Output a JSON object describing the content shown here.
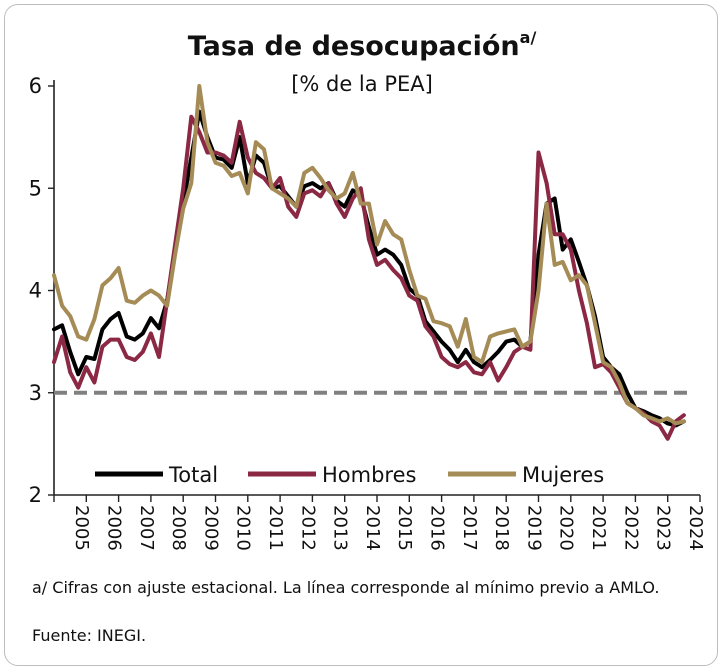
{
  "chart_data": {
    "type": "line",
    "title": "Tasa de desocupación",
    "title_superscript": "a/",
    "subtitle": "[% de la PEA]",
    "xlabel": "",
    "ylabel": "",
    "ylim": [
      2,
      6
    ],
    "xlim": [
      2005,
      2025
    ],
    "yticks": [
      "2",
      "3",
      "4",
      "5",
      "6"
    ],
    "xticks": [
      "2005",
      "2006",
      "2007",
      "2008",
      "2009",
      "2010",
      "2011",
      "2012",
      "2013",
      "2014",
      "2015",
      "2016",
      "2017",
      "2018",
      "2019",
      "2020",
      "2021",
      "2022",
      "2023",
      "2024"
    ],
    "grid": false,
    "legend_position": "bottom-inside",
    "reference_line": {
      "value": 3.0,
      "style": "dashed",
      "color": "#808080"
    },
    "series": [
      {
        "name": "Total",
        "color": "#000000",
        "points": [
          [
            2005.0,
            3.62
          ],
          [
            2005.25,
            3.66
          ],
          [
            2005.5,
            3.4
          ],
          [
            2005.75,
            3.18
          ],
          [
            2006.0,
            3.35
          ],
          [
            2006.25,
            3.33
          ],
          [
            2006.5,
            3.62
          ],
          [
            2006.75,
            3.72
          ],
          [
            2007.0,
            3.78
          ],
          [
            2007.25,
            3.55
          ],
          [
            2007.5,
            3.52
          ],
          [
            2007.75,
            3.58
          ],
          [
            2008.0,
            3.73
          ],
          [
            2008.25,
            3.63
          ],
          [
            2008.5,
            3.9
          ],
          [
            2008.75,
            4.4
          ],
          [
            2009.0,
            4.85
          ],
          [
            2009.25,
            5.3
          ],
          [
            2009.5,
            5.75
          ],
          [
            2009.75,
            5.5
          ],
          [
            2010.0,
            5.3
          ],
          [
            2010.25,
            5.28
          ],
          [
            2010.5,
            5.2
          ],
          [
            2010.75,
            5.5
          ],
          [
            2011.0,
            5.05
          ],
          [
            2011.25,
            5.32
          ],
          [
            2011.5,
            5.25
          ],
          [
            2011.75,
            5.0
          ],
          [
            2012.0,
            5.02
          ],
          [
            2012.25,
            4.92
          ],
          [
            2012.5,
            4.82
          ],
          [
            2012.75,
            5.02
          ],
          [
            2013.0,
            5.05
          ],
          [
            2013.25,
            5.0
          ],
          [
            2013.5,
            5.05
          ],
          [
            2013.75,
            4.88
          ],
          [
            2014.0,
            4.82
          ],
          [
            2014.25,
            4.98
          ],
          [
            2014.5,
            4.92
          ],
          [
            2014.75,
            4.62
          ],
          [
            2015.0,
            4.35
          ],
          [
            2015.25,
            4.4
          ],
          [
            2015.5,
            4.35
          ],
          [
            2015.75,
            4.25
          ],
          [
            2016.0,
            4.02
          ],
          [
            2016.25,
            3.95
          ],
          [
            2016.5,
            3.7
          ],
          [
            2016.75,
            3.6
          ],
          [
            2017.0,
            3.5
          ],
          [
            2017.25,
            3.42
          ],
          [
            2017.5,
            3.3
          ],
          [
            2017.75,
            3.42
          ],
          [
            2018.0,
            3.3
          ],
          [
            2018.25,
            3.25
          ],
          [
            2018.5,
            3.32
          ],
          [
            2018.75,
            3.4
          ],
          [
            2019.0,
            3.5
          ],
          [
            2019.25,
            3.52
          ],
          [
            2019.5,
            3.45
          ],
          [
            2019.75,
            3.5
          ],
          [
            2020.0,
            4.35
          ],
          [
            2020.25,
            4.85
          ],
          [
            2020.5,
            4.9
          ],
          [
            2020.75,
            4.4
          ],
          [
            2021.0,
            4.5
          ],
          [
            2021.25,
            4.28
          ],
          [
            2021.5,
            4.05
          ],
          [
            2021.75,
            3.75
          ],
          [
            2022.0,
            3.35
          ],
          [
            2022.25,
            3.25
          ],
          [
            2022.5,
            3.18
          ],
          [
            2022.75,
            3.0
          ],
          [
            2023.0,
            2.85
          ],
          [
            2023.25,
            2.82
          ],
          [
            2023.5,
            2.78
          ],
          [
            2023.75,
            2.75
          ],
          [
            2024.0,
            2.7
          ],
          [
            2024.25,
            2.68
          ],
          [
            2024.5,
            2.72
          ]
        ]
      },
      {
        "name": "Hombres",
        "color": "#8b2844",
        "points": [
          [
            2005.0,
            3.3
          ],
          [
            2005.25,
            3.55
          ],
          [
            2005.5,
            3.2
          ],
          [
            2005.75,
            3.05
          ],
          [
            2006.0,
            3.25
          ],
          [
            2006.25,
            3.1
          ],
          [
            2006.5,
            3.45
          ],
          [
            2006.75,
            3.52
          ],
          [
            2007.0,
            3.52
          ],
          [
            2007.25,
            3.35
          ],
          [
            2007.5,
            3.32
          ],
          [
            2007.75,
            3.4
          ],
          [
            2008.0,
            3.58
          ],
          [
            2008.25,
            3.35
          ],
          [
            2008.5,
            3.9
          ],
          [
            2008.75,
            4.45
          ],
          [
            2009.0,
            5.0
          ],
          [
            2009.25,
            5.7
          ],
          [
            2009.5,
            5.55
          ],
          [
            2009.75,
            5.35
          ],
          [
            2010.0,
            5.35
          ],
          [
            2010.25,
            5.32
          ],
          [
            2010.5,
            5.25
          ],
          [
            2010.75,
            5.65
          ],
          [
            2011.0,
            5.3
          ],
          [
            2011.25,
            5.15
          ],
          [
            2011.5,
            5.1
          ],
          [
            2011.75,
            5.0
          ],
          [
            2012.0,
            5.1
          ],
          [
            2012.25,
            4.82
          ],
          [
            2012.5,
            4.72
          ],
          [
            2012.75,
            4.95
          ],
          [
            2013.0,
            4.98
          ],
          [
            2013.25,
            4.92
          ],
          [
            2013.5,
            5.05
          ],
          [
            2013.75,
            4.85
          ],
          [
            2014.0,
            4.72
          ],
          [
            2014.25,
            4.9
          ],
          [
            2014.5,
            5.0
          ],
          [
            2014.75,
            4.5
          ],
          [
            2015.0,
            4.25
          ],
          [
            2015.25,
            4.3
          ],
          [
            2015.5,
            4.2
          ],
          [
            2015.75,
            4.12
          ],
          [
            2016.0,
            3.95
          ],
          [
            2016.25,
            3.9
          ],
          [
            2016.5,
            3.65
          ],
          [
            2016.75,
            3.55
          ],
          [
            2017.0,
            3.35
          ],
          [
            2017.25,
            3.28
          ],
          [
            2017.5,
            3.25
          ],
          [
            2017.75,
            3.3
          ],
          [
            2018.0,
            3.2
          ],
          [
            2018.25,
            3.18
          ],
          [
            2018.5,
            3.3
          ],
          [
            2018.75,
            3.12
          ],
          [
            2019.0,
            3.25
          ],
          [
            2019.25,
            3.4
          ],
          [
            2019.5,
            3.45
          ],
          [
            2019.75,
            3.42
          ],
          [
            2020.0,
            5.35
          ],
          [
            2020.25,
            5.05
          ],
          [
            2020.5,
            4.55
          ],
          [
            2020.75,
            4.55
          ],
          [
            2021.0,
            4.4
          ],
          [
            2021.25,
            4.0
          ],
          [
            2021.5,
            3.68
          ],
          [
            2021.75,
            3.25
          ],
          [
            2022.0,
            3.28
          ],
          [
            2022.25,
            3.2
          ],
          [
            2022.5,
            3.05
          ],
          [
            2022.75,
            2.9
          ],
          [
            2023.0,
            2.85
          ],
          [
            2023.25,
            2.8
          ],
          [
            2023.5,
            2.72
          ],
          [
            2023.75,
            2.68
          ],
          [
            2024.0,
            2.55
          ],
          [
            2024.25,
            2.72
          ],
          [
            2024.5,
            2.78
          ]
        ]
      },
      {
        "name": "Mujeres",
        "color": "#a58b55",
        "points": [
          [
            2005.0,
            4.15
          ],
          [
            2005.25,
            3.85
          ],
          [
            2005.5,
            3.75
          ],
          [
            2005.75,
            3.55
          ],
          [
            2006.0,
            3.52
          ],
          [
            2006.25,
            3.72
          ],
          [
            2006.5,
            4.05
          ],
          [
            2006.75,
            4.12
          ],
          [
            2007.0,
            4.22
          ],
          [
            2007.25,
            3.9
          ],
          [
            2007.5,
            3.88
          ],
          [
            2007.75,
            3.95
          ],
          [
            2008.0,
            4.0
          ],
          [
            2008.25,
            3.95
          ],
          [
            2008.5,
            3.85
          ],
          [
            2008.75,
            4.35
          ],
          [
            2009.0,
            4.8
          ],
          [
            2009.25,
            5.05
          ],
          [
            2009.5,
            6.0
          ],
          [
            2009.75,
            5.45
          ],
          [
            2010.0,
            5.25
          ],
          [
            2010.25,
            5.22
          ],
          [
            2010.5,
            5.12
          ],
          [
            2010.75,
            5.15
          ],
          [
            2011.0,
            4.95
          ],
          [
            2011.25,
            5.45
          ],
          [
            2011.5,
            5.38
          ],
          [
            2011.75,
            5.0
          ],
          [
            2012.0,
            4.95
          ],
          [
            2012.25,
            4.9
          ],
          [
            2012.5,
            4.82
          ],
          [
            2012.75,
            5.15
          ],
          [
            2013.0,
            5.2
          ],
          [
            2013.25,
            5.1
          ],
          [
            2013.5,
            4.98
          ],
          [
            2013.75,
            4.9
          ],
          [
            2014.0,
            4.95
          ],
          [
            2014.25,
            5.15
          ],
          [
            2014.5,
            4.85
          ],
          [
            2014.75,
            4.85
          ],
          [
            2015.0,
            4.45
          ],
          [
            2015.25,
            4.68
          ],
          [
            2015.5,
            4.55
          ],
          [
            2015.75,
            4.5
          ],
          [
            2016.0,
            4.2
          ],
          [
            2016.25,
            3.95
          ],
          [
            2016.5,
            3.92
          ],
          [
            2016.75,
            3.7
          ],
          [
            2017.0,
            3.68
          ],
          [
            2017.25,
            3.65
          ],
          [
            2017.5,
            3.45
          ],
          [
            2017.75,
            3.72
          ],
          [
            2018.0,
            3.35
          ],
          [
            2018.25,
            3.3
          ],
          [
            2018.5,
            3.55
          ],
          [
            2018.75,
            3.58
          ],
          [
            2019.0,
            3.6
          ],
          [
            2019.25,
            3.62
          ],
          [
            2019.5,
            3.45
          ],
          [
            2019.75,
            3.5
          ],
          [
            2020.0,
            4.0
          ],
          [
            2020.25,
            4.85
          ],
          [
            2020.5,
            4.25
          ],
          [
            2020.75,
            4.28
          ],
          [
            2021.0,
            4.1
          ],
          [
            2021.25,
            4.15
          ],
          [
            2021.5,
            4.05
          ],
          [
            2021.75,
            3.68
          ],
          [
            2022.0,
            3.3
          ],
          [
            2022.25,
            3.25
          ],
          [
            2022.5,
            3.1
          ],
          [
            2022.75,
            2.9
          ],
          [
            2023.0,
            2.85
          ],
          [
            2023.25,
            2.78
          ],
          [
            2023.5,
            2.75
          ],
          [
            2023.75,
            2.72
          ],
          [
            2024.0,
            2.75
          ],
          [
            2024.25,
            2.7
          ],
          [
            2024.5,
            2.72
          ]
        ]
      }
    ]
  },
  "footnote": {
    "line1": "a/ Cifras con ajuste estacional. La línea corresponde al mínimo previo a AMLO.",
    "line2": "Fuente: INEGI."
  }
}
